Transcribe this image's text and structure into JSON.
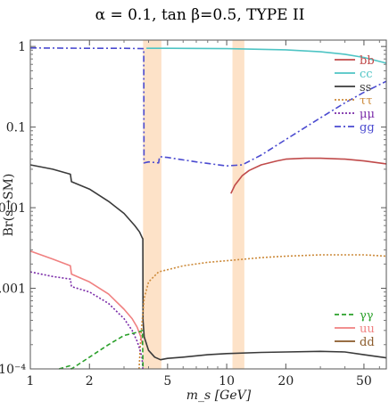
{
  "chart_data": {
    "type": "line",
    "title": "α = 0.1, tan β=0.5, TYPE II",
    "xlabel": "m_s [GeV]",
    "ylabel": "Br(s→SM)",
    "xscale": "log",
    "yscale": "log",
    "xlim": [
      1,
      65
    ],
    "ylim": [
      0.0001,
      1.2
    ],
    "xticks": [
      {
        "value": 1,
        "label": "1"
      },
      {
        "value": 2,
        "label": "2"
      },
      {
        "value": 5,
        "label": "5"
      },
      {
        "value": 10,
        "label": "10"
      },
      {
        "value": 20,
        "label": "20"
      },
      {
        "value": 50,
        "label": "50"
      }
    ],
    "yticks": [
      {
        "value": 1,
        "label": "1"
      },
      {
        "value": 0.1,
        "label": "0.1"
      },
      {
        "value": 0.01,
        "label": "0.01"
      },
      {
        "value": 0.001,
        "label": "0.001"
      },
      {
        "value": 0.0001,
        "label": "10⁻⁴"
      }
    ],
    "shaded_bands": [
      {
        "x0": 3.75,
        "x1": 4.65,
        "color": "#fde2c8"
      },
      {
        "x0": 10.7,
        "x1": 12.3,
        "color": "#fde2c8"
      }
    ],
    "legend_top": [
      "bb",
      "cc",
      "ss",
      "ττ",
      "μμ",
      "gg"
    ],
    "legend_bottom": [
      "γγ",
      "uu",
      "dd"
    ],
    "series": [
      {
        "name": "gg",
        "color": "#4a4ad0",
        "dash": "7,3,2,3",
        "x": [
          1,
          2,
          3,
          3.78,
          3.79,
          4.0,
          4.5,
          4.55,
          5,
          7,
          10,
          12,
          15,
          20,
          30,
          40,
          50,
          65
        ],
        "y": [
          0.96,
          0.95,
          0.95,
          0.94,
          0.036,
          0.037,
          0.036,
          0.043,
          0.042,
          0.037,
          0.033,
          0.034,
          0.045,
          0.07,
          0.13,
          0.2,
          0.27,
          0.37
        ]
      },
      {
        "name": "cc",
        "color": "#4ec4c4",
        "dash": "",
        "x": [
          3.9,
          5,
          10,
          20,
          30,
          40,
          50,
          65
        ],
        "y": [
          0.95,
          0.95,
          0.94,
          0.91,
          0.86,
          0.8,
          0.73,
          0.62
        ]
      },
      {
        "name": "ss",
        "color": "#3a3a3a",
        "dash": "",
        "x": [
          1,
          1.3,
          1.6,
          1.62,
          2,
          2.5,
          3,
          3.4,
          3.6,
          3.7,
          3.74,
          3.75,
          3.8,
          4,
          4.3,
          4.6,
          5,
          6,
          8,
          10,
          15,
          20,
          30,
          40,
          50,
          65
        ],
        "y": [
          0.034,
          0.03,
          0.026,
          0.021,
          0.017,
          0.012,
          0.0085,
          0.006,
          0.005,
          0.0043,
          0.0041,
          0.0004,
          0.00025,
          0.00017,
          0.00014,
          0.00013,
          0.000135,
          0.00014,
          0.00015,
          0.000155,
          0.00016,
          0.000162,
          0.000165,
          0.000162,
          0.00015,
          0.000137
        ]
      },
      {
        "name": "bb",
        "color": "#c04a4a",
        "dash": "",
        "x": [
          10.5,
          11,
          12,
          13,
          15,
          18,
          20,
          25,
          30,
          40,
          50,
          65
        ],
        "y": [
          0.015,
          0.019,
          0.025,
          0.029,
          0.034,
          0.038,
          0.04,
          0.041,
          0.041,
          0.04,
          0.038,
          0.035
        ]
      },
      {
        "name": "ττ",
        "color": "#cc8a3a",
        "dash": "2,2",
        "x": [
          3.58,
          3.65,
          3.8,
          4,
          4.5,
          5,
          6,
          8,
          10,
          15,
          20,
          30,
          40,
          50,
          65
        ],
        "y": [
          0.0001,
          0.00025,
          0.00075,
          0.0012,
          0.0016,
          0.0017,
          0.0019,
          0.0021,
          0.0022,
          0.0024,
          0.0025,
          0.0026,
          0.0026,
          0.0026,
          0.0025
        ]
      },
      {
        "name": "μμ",
        "color": "#7a2aa8",
        "dash": "2,2",
        "x": [
          1,
          1.3,
          1.6,
          1.62,
          2,
          2.5,
          3,
          3.3,
          3.5,
          3.6,
          3.7,
          3.74
        ],
        "y": [
          0.0016,
          0.0014,
          0.0013,
          0.00105,
          0.0009,
          0.00065,
          0.00042,
          0.0003,
          0.00022,
          0.00018,
          0.00014,
          0.0001
        ]
      },
      {
        "name": "uu",
        "color": "#f08080",
        "dash": "",
        "x": [
          1,
          1.3,
          1.6,
          1.62,
          2,
          2.5,
          3,
          3.3,
          3.5,
          3.65,
          3.72
        ],
        "y": [
          0.0029,
          0.0023,
          0.0019,
          0.0015,
          0.0012,
          0.00085,
          0.00055,
          0.00042,
          0.00033,
          0.00025,
          0.0002
        ]
      },
      {
        "name": "dd",
        "color": "#8a5a2a",
        "dash": "",
        "x": [],
        "y": []
      },
      {
        "name": "γγ",
        "color": "#2aa02a",
        "dash": "5,3",
        "x": [
          1.4,
          1.6,
          1.62,
          2,
          2.5,
          3,
          3.4,
          3.6,
          3.72,
          3.75
        ],
        "y": [
          0.0001,
          0.00011,
          0.0001,
          0.00014,
          0.0002,
          0.00026,
          0.00028,
          0.00029,
          0.0003,
          0.0001
        ]
      }
    ]
  }
}
